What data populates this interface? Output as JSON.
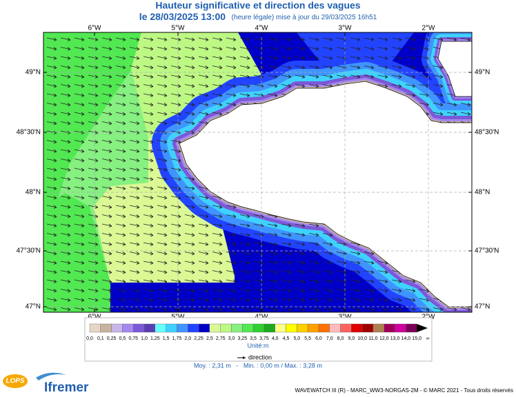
{
  "header": {
    "title": "Hauteur significative et direction des vagues",
    "date": "le 28/03/2025 13:00",
    "update": "(heure légale) mise à jour du 29/03/2025 16h51"
  },
  "map": {
    "longitudes": [
      "6°W",
      "5°W",
      "4°W",
      "3°W",
      "2°W"
    ],
    "latitudes": [
      "49°N",
      "48°30'N",
      "48°N",
      "47°30'N",
      "47°N"
    ]
  },
  "legend": {
    "labels": [
      "0,0",
      "0,1",
      "0,25",
      "0,5",
      "0,75",
      "1,0",
      "1,25",
      "1,5",
      "1,75",
      "2,0",
      "2,25",
      "2,5",
      "2,75",
      "3,0",
      "3,25",
      "3,5",
      "3,75",
      "4,0",
      "4,5",
      "5,0",
      "5,5",
      "6,0",
      "7,0",
      "8,0",
      "9,0",
      "10,0",
      "11,0",
      "12,0",
      "13,0",
      "14,0",
      "15,0",
      "∞"
    ],
    "colors": [
      "#e6d6c4",
      "#c9b29e",
      "#c8b6ea",
      "#a488f0",
      "#7c58d8",
      "#5a3cb4",
      "#66ffff",
      "#3fd2ff",
      "#3f94ff",
      "#2244ff",
      "#0000c8",
      "#daf894",
      "#bdf884",
      "#86f080",
      "#52e852",
      "#2ed02e",
      "#1fa81f",
      "#ffff88",
      "#ffff00",
      "#ffd000",
      "#ffa000",
      "#ff7000",
      "#ffbcbc",
      "#ff6060",
      "#e00000",
      "#a00000",
      "#b08050",
      "#a0005a",
      "#d000a0",
      "#7a0058",
      "#000000"
    ],
    "unit": "Unité:m",
    "direction": "direction",
    "stats": "Moy. : 2,31 m   -   Min. : 0,00 m / Max. : 3,28 m"
  },
  "footer": {
    "credits": "WAVEWATCH III (R) - MARC_WW3-NORGAS-2M - © MARC 2021 - Tous droits réservés",
    "logo_lops": "LOPS",
    "logo_ifremer": "Ifremer"
  }
}
